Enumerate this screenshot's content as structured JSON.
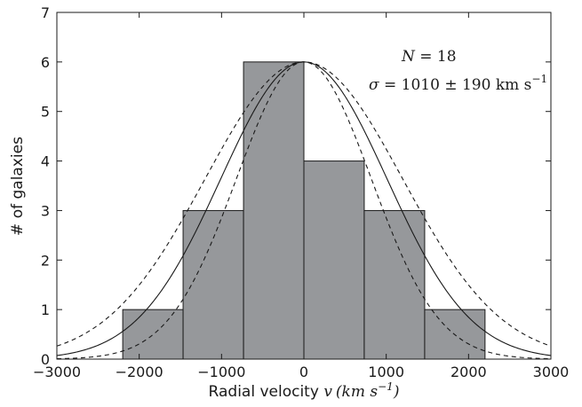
{
  "chart_data": {
    "type": "histogram",
    "bin_edges": [
      -2200,
      -1467,
      -733,
      0,
      733,
      1467,
      2200
    ],
    "values": [
      1,
      3,
      6,
      4,
      3,
      1
    ],
    "bar_color": "#96989b",
    "bar_edge_color": "#1a1a1a",
    "xlim": [
      -3000,
      3000
    ],
    "ylim": [
      0,
      7
    ],
    "xticks": [
      -3000,
      -2000,
      -1000,
      0,
      1000,
      2000,
      3000
    ],
    "yticks": [
      0,
      1,
      2,
      3,
      4,
      5,
      6,
      7
    ],
    "xtick_labels": [
      "−3000",
      "−2000",
      "−1000",
      "0",
      "1000",
      "2000",
      "3000"
    ],
    "ytick_labels": [
      "0",
      "1",
      "2",
      "3",
      "4",
      "5",
      "6",
      "7"
    ],
    "xlabel": {
      "text": "Radial velocity ",
      "var": "v",
      "unit": "(km s",
      "exp": "−1",
      "close": ")"
    },
    "ylabel": "# of galaxies",
    "grid": false,
    "curves": [
      {
        "style": "solid",
        "amplitude": 6,
        "mean": 0,
        "sigma": 1010
      },
      {
        "style": "dashed",
        "amplitude": 6,
        "mean": 0,
        "sigma": 820
      },
      {
        "style": "dashed",
        "amplitude": 6,
        "mean": 0,
        "sigma": 1200
      }
    ],
    "annotations": {
      "n_label": "N",
      "n_eq": " = 18",
      "sigma_label": "σ",
      "sigma_eq": " = 1010 ± 190 km s",
      "sigma_exp": "−1"
    }
  }
}
